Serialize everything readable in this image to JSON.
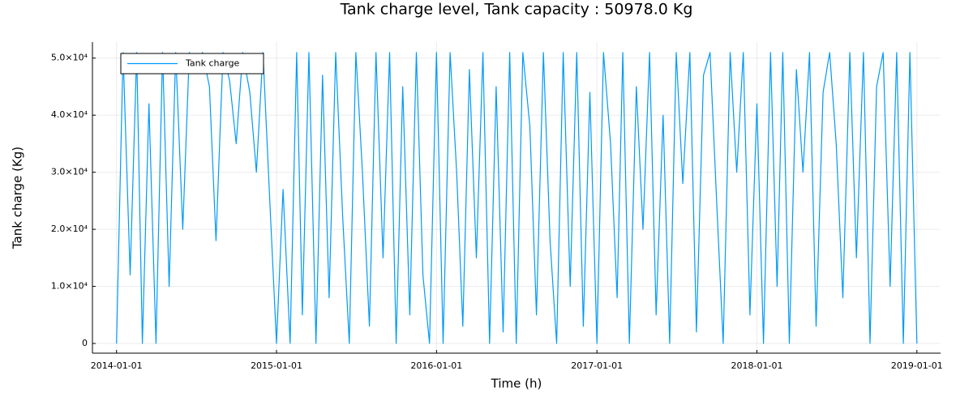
{
  "chart_data": {
    "type": "line",
    "title": "Tank charge level, Tank capacity : 50978.0 Kg",
    "xlabel": "Time (h)",
    "ylabel": "Tank charge (Kg)",
    "x": [
      "2014-01-01",
      "2014-01-16",
      "2014-02-01",
      "2014-02-16",
      "2014-03-01",
      "2014-03-16",
      "2014-04-01",
      "2014-04-16",
      "2014-05-01",
      "2014-05-16",
      "2014-06-01",
      "2014-06-16",
      "2014-07-01",
      "2014-07-16",
      "2014-08-01",
      "2014-08-16",
      "2014-09-01",
      "2014-09-16",
      "2014-10-01",
      "2014-10-16",
      "2014-11-01",
      "2014-11-16",
      "2014-12-01",
      "2014-12-16",
      "2015-01-01",
      "2015-01-16",
      "2015-02-01",
      "2015-02-16",
      "2015-03-01",
      "2015-03-16",
      "2015-04-01",
      "2015-04-16",
      "2015-05-01",
      "2015-05-16",
      "2015-06-01",
      "2015-06-16",
      "2015-07-01",
      "2015-07-16",
      "2015-08-01",
      "2015-08-16",
      "2015-09-01",
      "2015-09-16",
      "2015-10-01",
      "2015-10-16",
      "2015-11-01",
      "2015-11-16",
      "2015-12-01",
      "2015-12-16",
      "2016-01-01",
      "2016-01-16",
      "2016-02-01",
      "2016-02-16",
      "2016-03-01",
      "2016-03-16",
      "2016-04-01",
      "2016-04-16",
      "2016-05-01",
      "2016-05-16",
      "2016-06-01",
      "2016-06-16",
      "2016-07-01",
      "2016-07-16",
      "2016-08-01",
      "2016-08-16",
      "2016-09-01",
      "2016-09-16",
      "2016-10-01",
      "2016-10-16",
      "2016-11-01",
      "2016-11-16",
      "2016-12-01",
      "2016-12-16",
      "2017-01-01",
      "2017-01-16",
      "2017-02-01",
      "2017-02-16",
      "2017-03-01",
      "2017-03-16",
      "2017-04-01",
      "2017-04-16",
      "2017-05-01",
      "2017-05-16",
      "2017-06-01",
      "2017-06-16",
      "2017-07-01",
      "2017-07-16",
      "2017-08-01",
      "2017-08-16",
      "2017-09-01",
      "2017-09-16",
      "2017-10-01",
      "2017-10-16",
      "2017-11-01",
      "2017-11-16",
      "2017-12-01",
      "2017-12-16",
      "2018-01-01",
      "2018-01-16",
      "2018-02-01",
      "2018-02-16",
      "2018-03-01",
      "2018-03-16",
      "2018-04-01",
      "2018-04-16",
      "2018-05-01",
      "2018-05-16",
      "2018-06-01",
      "2018-06-16",
      "2018-07-01",
      "2018-07-16",
      "2018-08-01",
      "2018-08-16",
      "2018-09-01",
      "2018-09-16",
      "2018-10-01",
      "2018-10-16",
      "2018-11-01",
      "2018-11-16",
      "2018-12-01",
      "2018-12-16",
      "2019-01-01"
    ],
    "series": [
      {
        "name": "Tank charge",
        "color": "#009af9",
        "values": [
          0,
          50978,
          12000,
          50978,
          0,
          42000,
          0,
          50978,
          10000,
          50978,
          20000,
          50978,
          48000,
          50978,
          45000,
          18000,
          50978,
          46000,
          35000,
          50978,
          44000,
          30000,
          50978,
          26000,
          0,
          27000,
          0,
          50978,
          5000,
          50978,
          0,
          47000,
          8000,
          50978,
          22000,
          0,
          50978,
          30000,
          3000,
          50978,
          15000,
          50978,
          0,
          45000,
          5000,
          50978,
          12000,
          0,
          50978,
          0,
          50978,
          30000,
          3000,
          48000,
          15000,
          50978,
          0,
          45000,
          2000,
          50978,
          0,
          50978,
          38000,
          5000,
          50978,
          18000,
          0,
          50978,
          10000,
          50978,
          3000,
          44000,
          0,
          50978,
          35000,
          8000,
          50978,
          0,
          45000,
          20000,
          50978,
          5000,
          40000,
          0,
          50978,
          28000,
          50978,
          2000,
          47000,
          50978,
          25000,
          0,
          50978,
          30000,
          50978,
          5000,
          42000,
          0,
          50978,
          10000,
          50978,
          0,
          48000,
          30000,
          50978,
          3000,
          44000,
          50978,
          35000,
          8000,
          50978,
          15000,
          50978,
          0,
          45000,
          50978,
          10000,
          50978,
          0,
          50978,
          0
        ]
      }
    ],
    "xlim": [
      "2013-11-07",
      "2019-02-24"
    ],
    "xticks": [
      "2014-01-01",
      "2015-01-01",
      "2016-01-01",
      "2017-01-01",
      "2018-01-01",
      "2019-01-01"
    ],
    "ylim": [
      -1700,
      52800
    ],
    "yticks": [
      0,
      {
        "value": 10000,
        "label": "1.0×10⁴"
      },
      {
        "value": 20000,
        "label": "2.0×10⁴"
      },
      {
        "value": 30000,
        "label": "3.0×10⁴"
      },
      {
        "value": 40000,
        "label": "4.0×10⁴"
      },
      {
        "value": 50000,
        "label": "5.0×10⁴"
      }
    ],
    "grid": true,
    "legend": "top-left"
  }
}
